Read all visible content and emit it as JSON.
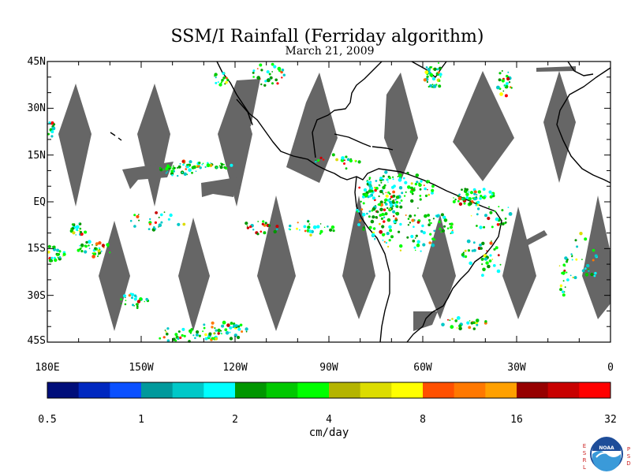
{
  "figure": {
    "title": "SSM/I Rainfall (Ferriday algorithm)",
    "subtitle": "March 21, 2009"
  },
  "map": {
    "lat_labels": [
      "45N",
      "30N",
      "15N",
      "EQ",
      "15S",
      "30S",
      "45S"
    ],
    "lat_values": [
      45,
      30,
      15,
      0,
      -15,
      -30,
      -45
    ],
    "lon_labels": [
      "180E",
      "150W",
      "120W",
      "90W",
      "60W",
      "30W",
      "0"
    ],
    "lon_values": [
      -180,
      -150,
      -120,
      -90,
      -60,
      -30,
      0
    ],
    "lat_range": [
      -45,
      45
    ],
    "lon_range": [
      -180,
      0
    ],
    "colors": {
      "no_data_swath_gap": "#666666",
      "land_outline": "#000000",
      "background": "#ffffff"
    }
  },
  "colorbar": {
    "tick_labels": [
      "0.5",
      "1",
      "2",
      "4",
      "8",
      "16",
      "32"
    ],
    "tick_values": [
      0.5,
      1,
      2,
      4,
      8,
      16,
      32
    ],
    "unit_label": "cm/day",
    "colors": [
      "#000e7a",
      "#0028c0",
      "#0a50ff",
      "#00999c",
      "#00c8c8",
      "#00ffff",
      "#009600",
      "#00c800",
      "#00ff00",
      "#b4b400",
      "#dcdc00",
      "#ffff00",
      "#ff5000",
      "#ff7800",
      "#ffa000",
      "#960000",
      "#c80000",
      "#ff0000"
    ]
  },
  "logo": {
    "agency": "NOAA",
    "left_letters": [
      "E",
      "S",
      "R",
      "L"
    ],
    "right_letters": [
      "P",
      "S",
      "D"
    ]
  }
}
